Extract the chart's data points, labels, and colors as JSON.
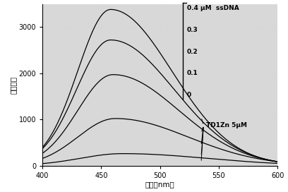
{
  "xlabel": "波长（nm）",
  "ylabel": "荧\n光\n强\n度",
  "xlim": [
    400,
    600
  ],
  "ylim": [
    0,
    3500
  ],
  "yticks": [
    0,
    1000,
    2000,
    3000
  ],
  "xticks": [
    400,
    450,
    500,
    550,
    600
  ],
  "annotation": "TD1Zn 5μM",
  "background_color": "#d8d8d8",
  "line_color": "#000000",
  "legend_items": [
    "0.4 μM  ssDNA",
    "0.3",
    "0.2",
    "0.1",
    "0"
  ],
  "curve_params": [
    [
      458,
      3380,
      28,
      52
    ],
    [
      458,
      2720,
      29,
      54
    ],
    [
      460,
      1970,
      30,
      56
    ],
    [
      462,
      1020,
      32,
      62
    ],
    [
      468,
      260,
      36,
      72
    ]
  ]
}
